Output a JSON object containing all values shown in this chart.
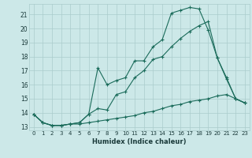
{
  "xlabel": "Humidex (Indice chaleur)",
  "background_color": "#cce8e8",
  "grid_color": "#aacccc",
  "line_color": "#1a6b5a",
  "xlim": [
    -0.5,
    23.5
  ],
  "ylim": [
    12.75,
    21.75
  ],
  "yticks": [
    13,
    14,
    15,
    16,
    17,
    18,
    19,
    20,
    21
  ],
  "xticks": [
    0,
    1,
    2,
    3,
    4,
    5,
    6,
    7,
    8,
    9,
    10,
    11,
    12,
    13,
    14,
    15,
    16,
    17,
    18,
    19,
    20,
    21,
    22,
    23
  ],
  "series": [
    {
      "x": [
        0,
        1,
        2,
        3,
        4,
        5,
        6,
        7,
        8,
        9,
        10,
        11,
        12,
        13,
        14,
        15,
        16,
        17,
        18,
        19,
        20,
        21,
        22,
        23
      ],
      "y": [
        13.9,
        13.3,
        13.1,
        13.1,
        13.2,
        13.2,
        13.3,
        13.4,
        13.5,
        13.6,
        13.7,
        13.8,
        14.0,
        14.1,
        14.3,
        14.5,
        14.6,
        14.8,
        14.9,
        15.0,
        15.2,
        15.3,
        15.0,
        14.7
      ]
    },
    {
      "x": [
        0,
        1,
        2,
        3,
        4,
        5,
        6,
        7,
        8,
        9,
        10,
        11,
        12,
        13,
        14,
        15,
        16,
        17,
        18,
        19,
        20,
        21,
        22,
        23
      ],
      "y": [
        13.9,
        13.3,
        13.1,
        13.1,
        13.2,
        13.3,
        13.9,
        14.3,
        14.2,
        15.3,
        15.5,
        16.5,
        17.0,
        17.8,
        18.0,
        18.7,
        19.3,
        19.8,
        20.2,
        20.5,
        17.9,
        16.4,
        15.0,
        14.7
      ]
    },
    {
      "x": [
        0,
        1,
        2,
        3,
        4,
        5,
        6,
        7,
        8,
        9,
        10,
        11,
        12,
        13,
        14,
        15,
        16,
        17,
        18,
        19,
        20,
        21,
        22,
        23
      ],
      "y": [
        13.9,
        13.3,
        13.1,
        13.1,
        13.2,
        13.3,
        13.9,
        17.2,
        16.0,
        16.3,
        16.5,
        17.7,
        17.7,
        18.7,
        19.2,
        21.1,
        21.3,
        21.5,
        21.4,
        19.9,
        17.9,
        16.5,
        15.0,
        14.7
      ]
    }
  ]
}
